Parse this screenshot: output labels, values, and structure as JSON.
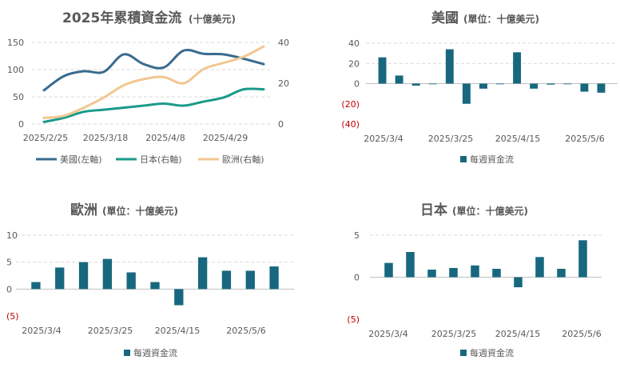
{
  "chart_data": [
    {
      "type": "line",
      "title": "2025年累積資金流",
      "subtitle": "(十億美元)",
      "x_tick_labels": [
        "2025/2/25",
        "2025/3/18",
        "2025/4/8",
        "2025/4/29"
      ],
      "y_left_range": [
        0,
        150
      ],
      "y_left_ticks": [
        "0",
        "50",
        "100",
        "150"
      ],
      "y_right_range": [
        0,
        40
      ],
      "y_right_ticks": [
        "0",
        "20",
        "40"
      ],
      "series": [
        {
          "name": "美國(左軸)",
          "axis": "left",
          "color": "#3a6b8f",
          "values": [
            62,
            88,
            97,
            96,
            128,
            110,
            104,
            135,
            129,
            128,
            120,
            110
          ]
        },
        {
          "name": "日本(右軸)",
          "axis": "right",
          "color": "#1a9a8a",
          "values": [
            1,
            3,
            6,
            7,
            8,
            9,
            10,
            9,
            11,
            13,
            17,
            17
          ]
        },
        {
          "name": "歐洲(右軸)",
          "axis": "right",
          "color": "#f0c890",
          "values": [
            3,
            4,
            8,
            13,
            19,
            22,
            23,
            20,
            27,
            30,
            33,
            38
          ]
        }
      ],
      "grid": true,
      "legend_position": "bottom"
    },
    {
      "type": "bar",
      "title": "美國",
      "subtitle": "(單位：十億美元)",
      "x_tick_labels": [
        "2025/3/4",
        "2025/3/25",
        "2025/4/15",
        "2025/5/6"
      ],
      "y_range": [
        -40,
        40
      ],
      "y_ticks": [
        "40",
        "20",
        "0",
        "(20)",
        "(40)"
      ],
      "series": [
        {
          "name": "每週資金流",
          "color": "#17687e",
          "values": [
            26,
            8,
            -2,
            0,
            34,
            -20,
            -5,
            0,
            31,
            -5,
            -1,
            0,
            -8,
            -9
          ]
        }
      ],
      "legend_position": "bottom"
    },
    {
      "type": "bar",
      "title": "歐洲",
      "subtitle": "(單位：十億美元)",
      "x_tick_labels": [
        "2025/3/4",
        "2025/3/25",
        "2025/4/15",
        "2025/5/6"
      ],
      "y_range": [
        -5,
        10
      ],
      "y_ticks": [
        "10",
        "5",
        "0",
        "(5)"
      ],
      "series": [
        {
          "name": "每週資金流",
          "color": "#17687e",
          "values": [
            1.3,
            4.0,
            5.0,
            5.6,
            3.1,
            1.3,
            -3.0,
            5.9,
            3.4,
            3.4,
            4.2
          ]
        }
      ],
      "legend_position": "bottom"
    },
    {
      "type": "bar",
      "title": "日本",
      "subtitle": "(單位：十億美元)",
      "x_tick_labels": [
        "2025/3/4",
        "2025/3/25",
        "2025/4/15",
        "2025/5/6"
      ],
      "y_range": [
        -5,
        5
      ],
      "y_ticks": [
        "5",
        "0",
        "(5)"
      ],
      "series": [
        {
          "name": "每週資金流",
          "color": "#17687e",
          "values": [
            1.7,
            3.0,
            0.9,
            1.1,
            1.4,
            1.0,
            -1.2,
            2.4,
            1.0,
            4.4
          ]
        }
      ],
      "legend_position": "bottom"
    }
  ]
}
